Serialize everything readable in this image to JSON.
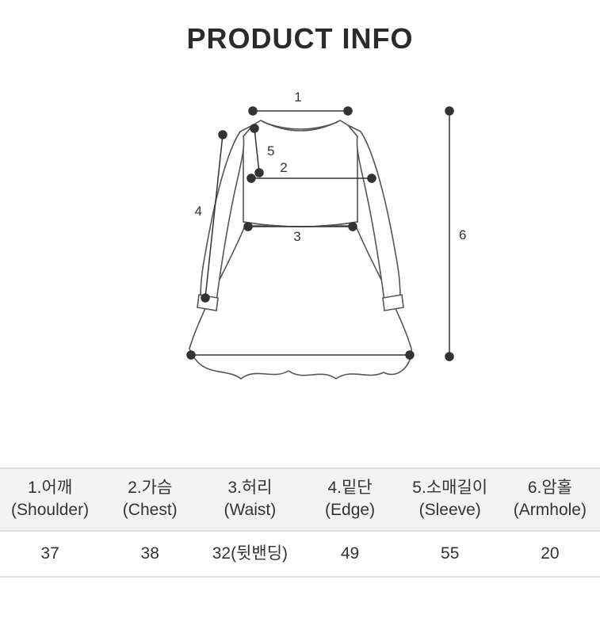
{
  "title": "PRODUCT INFO",
  "diagram": {
    "stroke": "#444444",
    "fill": "#ffffff",
    "dot_radius": 5,
    "dot_fill": "#333333",
    "label_fontsize": 16,
    "labels": {
      "m1": "1",
      "m2": "2",
      "m3": "3",
      "m4": "4",
      "m5": "5",
      "m6": "6"
    }
  },
  "table": {
    "columns": [
      {
        "num": "1",
        "kor": "어깨",
        "eng": "(Shoulder)"
      },
      {
        "num": "2",
        "kor": "가슴",
        "eng": "(Chest)"
      },
      {
        "num": "3",
        "kor": "허리",
        "eng": "(Waist)"
      },
      {
        "num": "4",
        "kor": "밑단",
        "eng": "(Edge)"
      },
      {
        "num": "5",
        "kor": "소매길이",
        "eng": "(Sleeve)"
      },
      {
        "num": "6",
        "kor": "암홀",
        "eng": "(Armhole)"
      }
    ],
    "values": [
      "37",
      "38",
      "32(뒷밴딩)",
      "49",
      "55",
      "20"
    ]
  },
  "colors": {
    "bg": "#ffffff",
    "text": "#333333",
    "header_bg": "#f3f3f3",
    "border": "#dedede"
  }
}
